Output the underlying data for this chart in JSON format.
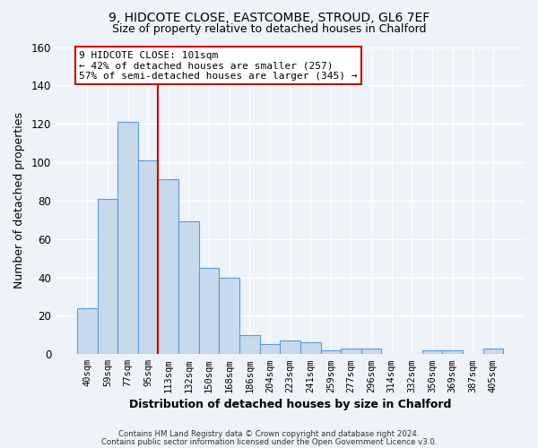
{
  "title_line1": "9, HIDCOTE CLOSE, EASTCOMBE, STROUD, GL6 7EF",
  "title_line2": "Size of property relative to detached houses in Chalford",
  "xlabel": "Distribution of detached houses by size in Chalford",
  "ylabel": "Number of detached properties",
  "bar_labels": [
    "40sqm",
    "59sqm",
    "77sqm",
    "95sqm",
    "113sqm",
    "132sqm",
    "150sqm",
    "168sqm",
    "186sqm",
    "204sqm",
    "223sqm",
    "241sqm",
    "259sqm",
    "277sqm",
    "296sqm",
    "314sqm",
    "332sqm",
    "350sqm",
    "369sqm",
    "387sqm",
    "405sqm"
  ],
  "bar_values": [
    24,
    81,
    121,
    101,
    91,
    69,
    45,
    40,
    10,
    5,
    7,
    6,
    2,
    3,
    3,
    0,
    0,
    2,
    2,
    0,
    3
  ],
  "bar_color": "#c9d9ec",
  "bar_edge_color": "#5b9bd5",
  "vline_x": 3.5,
  "vline_color": "#cc0000",
  "annotation_text": "9 HIDCOTE CLOSE: 101sqm\n← 42% of detached houses are smaller (257)\n57% of semi-detached houses are larger (345) →",
  "annotation_box_color": "#ffffff",
  "annotation_box_edge_color": "#cc0000",
  "ylim": [
    0,
    160
  ],
  "yticks": [
    0,
    20,
    40,
    60,
    80,
    100,
    120,
    140,
    160
  ],
  "background_color": "#eef2f9",
  "grid_color": "#ffffff",
  "footer_line1": "Contains HM Land Registry data © Crown copyright and database right 2024.",
  "footer_line2": "Contains public sector information licensed under the Open Government Licence v3.0."
}
